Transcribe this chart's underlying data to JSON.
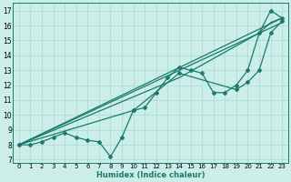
{
  "xlabel": "Humidex (Indice chaleur)",
  "bg_color": "#cceee8",
  "line_color": "#1a7a6e",
  "grid_color": "#aad8d0",
  "xlim": [
    -0.5,
    23.5
  ],
  "ylim": [
    6.8,
    17.5
  ],
  "xticks": [
    0,
    1,
    2,
    3,
    4,
    5,
    6,
    7,
    8,
    9,
    10,
    11,
    12,
    13,
    14,
    15,
    16,
    17,
    18,
    19,
    20,
    21,
    22,
    23
  ],
  "yticks": [
    7,
    8,
    9,
    10,
    11,
    12,
    13,
    14,
    15,
    16,
    17
  ],
  "series1": [
    [
      0,
      8.0
    ],
    [
      1,
      8.0
    ],
    [
      2,
      8.2
    ],
    [
      3,
      8.5
    ],
    [
      4,
      8.8
    ],
    [
      5,
      8.5
    ],
    [
      6,
      8.3
    ],
    [
      7,
      8.2
    ],
    [
      8,
      7.2
    ],
    [
      9,
      8.5
    ],
    [
      10,
      10.3
    ],
    [
      11,
      10.5
    ],
    [
      12,
      11.5
    ],
    [
      13,
      12.5
    ],
    [
      14,
      13.2
    ],
    [
      15,
      13.0
    ],
    [
      16,
      12.8
    ],
    [
      17,
      11.5
    ],
    [
      18,
      11.5
    ],
    [
      19,
      12.0
    ],
    [
      20,
      13.0
    ],
    [
      21,
      15.5
    ],
    [
      22,
      17.0
    ],
    [
      23,
      16.5
    ]
  ],
  "series2": [
    [
      0,
      8.0
    ],
    [
      23,
      16.5
    ]
  ],
  "series3": [
    [
      0,
      8.0
    ],
    [
      23,
      16.2
    ]
  ],
  "series4": [
    [
      0,
      8.0
    ],
    [
      14,
      12.5
    ],
    [
      21,
      15.5
    ],
    [
      22,
      16.2
    ],
    [
      23,
      16.5
    ]
  ],
  "series5": [
    [
      0,
      8.0
    ],
    [
      10,
      10.3
    ],
    [
      14,
      12.8
    ],
    [
      19,
      11.7
    ],
    [
      20,
      12.2
    ],
    [
      21,
      13.0
    ],
    [
      22,
      15.5
    ],
    [
      23,
      16.3
    ]
  ]
}
